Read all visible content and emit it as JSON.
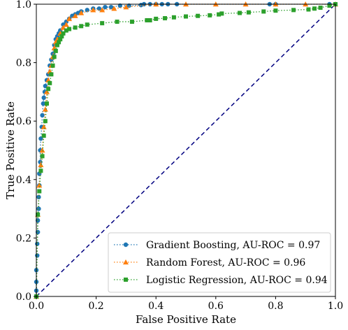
{
  "chart_data": {
    "type": "line",
    "title": "",
    "xlabel": "False Positive Rate",
    "ylabel": "True Positive Rate",
    "xlim": [
      0.0,
      1.0
    ],
    "ylim": [
      0.0,
      1.0
    ],
    "x_ticks": [
      "0.0",
      "0.2",
      "0.4",
      "0.6",
      "0.8",
      "1.0"
    ],
    "y_ticks": [
      "0.0",
      "0.2",
      "0.4",
      "0.6",
      "0.8",
      "1.0"
    ],
    "grid": false,
    "legend_position": "lower-right",
    "chance_line": {
      "x": [
        0.0,
        1.0
      ],
      "y": [
        0.0,
        1.0
      ],
      "color": "#000080"
    },
    "series": [
      {
        "name": "Gradient Boosting, AU-ROC = 0.97",
        "color": "#1f77b4",
        "marker": "circle",
        "x": [
          0.0,
          0.0,
          0.0,
          0.0,
          0.003,
          0.003,
          0.005,
          0.005,
          0.008,
          0.008,
          0.01,
          0.01,
          0.013,
          0.013,
          0.015,
          0.018,
          0.02,
          0.023,
          0.025,
          0.028,
          0.03,
          0.035,
          0.04,
          0.045,
          0.05,
          0.055,
          0.06,
          0.065,
          0.07,
          0.075,
          0.08,
          0.09,
          0.1,
          0.11,
          0.12,
          0.13,
          0.14,
          0.15,
          0.17,
          0.19,
          0.21,
          0.23,
          0.25,
          0.28,
          0.31,
          0.35,
          0.36,
          0.38,
          0.4,
          0.42,
          0.44,
          0.47,
          0.78,
          0.8,
          0.98,
          1.0
        ],
        "y": [
          0.0,
          0.02,
          0.05,
          0.09,
          0.14,
          0.18,
          0.22,
          0.26,
          0.3,
          0.34,
          0.38,
          0.42,
          0.46,
          0.5,
          0.54,
          0.58,
          0.62,
          0.66,
          0.68,
          0.7,
          0.72,
          0.74,
          0.76,
          0.79,
          0.81,
          0.83,
          0.86,
          0.88,
          0.89,
          0.9,
          0.91,
          0.93,
          0.94,
          0.95,
          0.96,
          0.965,
          0.97,
          0.975,
          0.98,
          0.985,
          0.985,
          0.99,
          0.99,
          0.995,
          0.995,
          0.997,
          1.0,
          1.0,
          1.0,
          1.0,
          1.0,
          1.0,
          1.0,
          1.0,
          1.0,
          1.0
        ]
      },
      {
        "name": "Random Forest, AU-ROC = 0.96",
        "color": "#ff7f0e",
        "marker": "triangle",
        "x": [
          0.0,
          0.005,
          0.01,
          0.015,
          0.02,
          0.025,
          0.03,
          0.035,
          0.04,
          0.045,
          0.05,
          0.055,
          0.06,
          0.065,
          0.07,
          0.08,
          0.09,
          0.1,
          0.11,
          0.13,
          0.15,
          0.19,
          0.22,
          0.26,
          0.3,
          0.4,
          0.5,
          0.6,
          0.7,
          0.8,
          0.9,
          1.0
        ],
        "y": [
          0.0,
          0.28,
          0.38,
          0.45,
          0.5,
          0.58,
          0.64,
          0.7,
          0.74,
          0.77,
          0.79,
          0.82,
          0.85,
          0.87,
          0.88,
          0.9,
          0.92,
          0.93,
          0.95,
          0.96,
          0.97,
          0.98,
          0.98,
          0.985,
          0.99,
          1.0,
          1.0,
          1.0,
          1.0,
          1.0,
          1.0,
          1.0
        ]
      },
      {
        "name": "Logistic Regression, AU-ROC = 0.94",
        "color": "#2ca02c",
        "marker": "square",
        "x": [
          0.0,
          0.005,
          0.01,
          0.015,
          0.02,
          0.025,
          0.03,
          0.035,
          0.04,
          0.045,
          0.05,
          0.055,
          0.06,
          0.065,
          0.07,
          0.075,
          0.08,
          0.085,
          0.09,
          0.1,
          0.11,
          0.13,
          0.15,
          0.17,
          0.22,
          0.27,
          0.32,
          0.37,
          0.38,
          0.4,
          0.43,
          0.46,
          0.5,
          0.54,
          0.58,
          0.61,
          0.62,
          0.68,
          0.71,
          0.76,
          0.8,
          0.86,
          0.91,
          0.93,
          0.95,
          0.98,
          1.0
        ],
        "y": [
          0.0,
          0.28,
          0.36,
          0.43,
          0.48,
          0.55,
          0.6,
          0.66,
          0.71,
          0.73,
          0.76,
          0.79,
          0.82,
          0.84,
          0.86,
          0.87,
          0.88,
          0.89,
          0.9,
          0.91,
          0.915,
          0.92,
          0.925,
          0.93,
          0.935,
          0.94,
          0.94,
          0.945,
          0.945,
          0.95,
          0.952,
          0.955,
          0.958,
          0.96,
          0.962,
          0.965,
          0.968,
          0.97,
          0.972,
          0.975,
          0.978,
          0.98,
          0.982,
          0.985,
          0.988,
          0.995,
          1.0
        ]
      }
    ]
  }
}
